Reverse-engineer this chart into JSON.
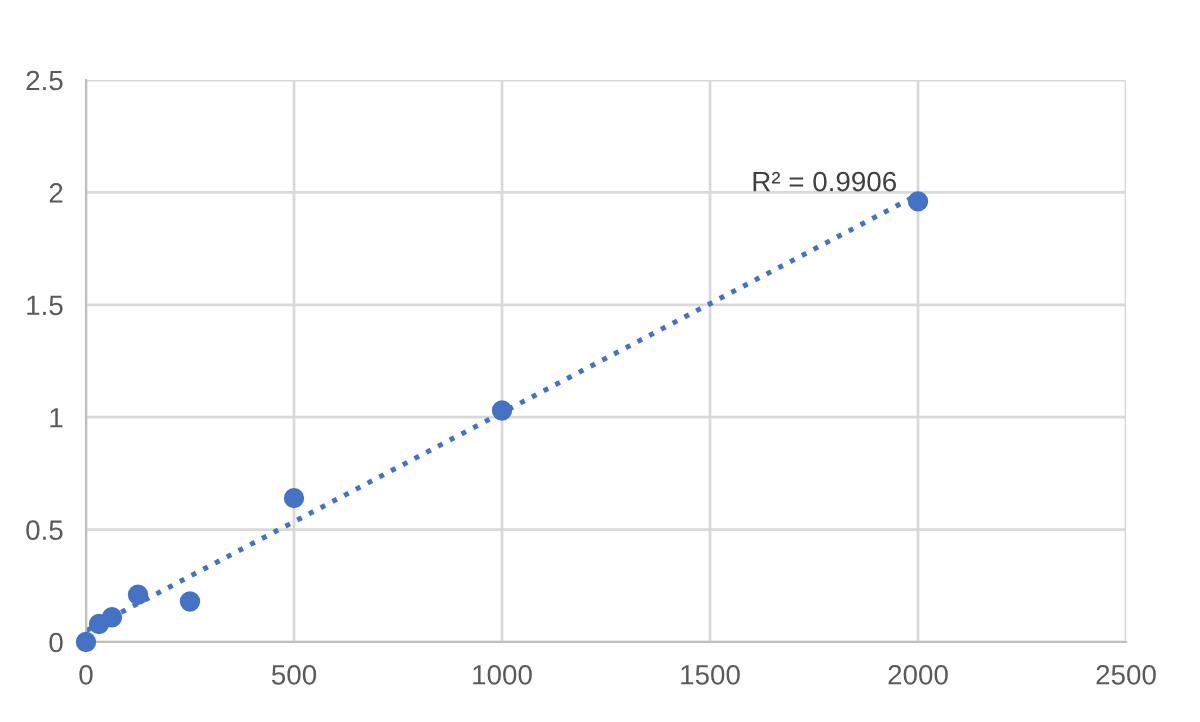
{
  "chart_data": {
    "type": "scatter",
    "xlim": [
      0,
      2500
    ],
    "ylim": [
      0,
      2.5
    ],
    "xticks": [
      0,
      500,
      1000,
      1500,
      2000,
      2500
    ],
    "yticks": [
      0,
      0.5,
      1,
      1.5,
      2,
      2.5
    ],
    "grid": true,
    "legend": false,
    "marker": "circle",
    "series": [
      {
        "color": "#4472c4",
        "x": [
          0,
          31.25,
          62.5,
          125,
          250,
          500,
          1000,
          2000
        ],
        "values": [
          0,
          0.08,
          0.11,
          0.21,
          0.18,
          0.64,
          1.03,
          1.96
        ]
      },
      {
        "type": "line",
        "color": "#4472c4",
        "line_style": "dotted",
        "marker": "none",
        "x": [
          0,
          2000
        ],
        "values": [
          0.05,
          1.99
        ]
      }
    ],
    "annotations": [
      {
        "text": "R² = 0.9906",
        "x": 1950,
        "y": 1.98
      }
    ]
  }
}
